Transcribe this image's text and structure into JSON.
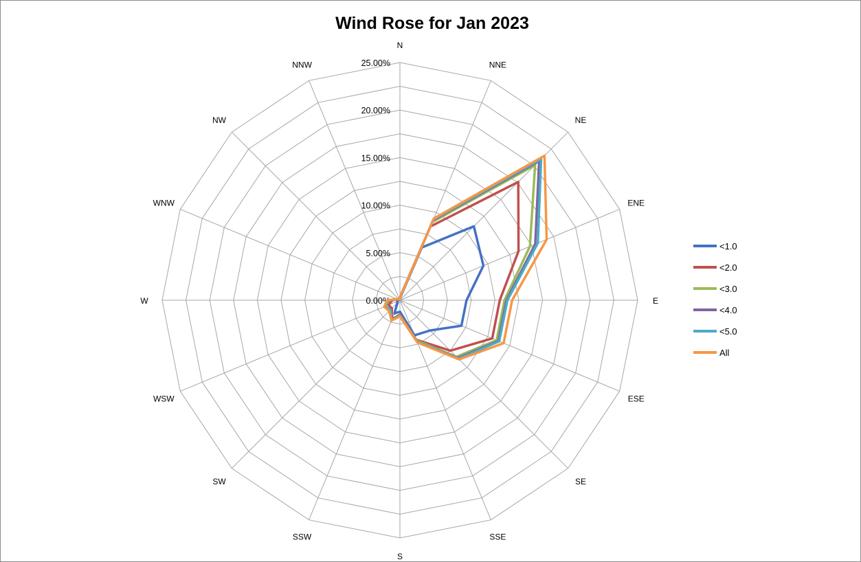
{
  "chart_data": {
    "type": "radar",
    "title": "Wind Rose for Jan 2023",
    "directions": [
      "N",
      "NNE",
      "NE",
      "ENE",
      "E",
      "ESE",
      "SE",
      "SSE",
      "S",
      "SSW",
      "SW",
      "WSW",
      "W",
      "WNW",
      "NW",
      "NNW"
    ],
    "radial_ticks": [
      "0.00%",
      "5.00%",
      "10.00%",
      "15.00%",
      "20.00%",
      "25.00%"
    ],
    "rmax": 25,
    "series": [
      {
        "name": "<1.0",
        "color": "#4472C4",
        "values": [
          0.2,
          6.0,
          11.0,
          9.5,
          7.0,
          7.0,
          4.5,
          4.0,
          1.2,
          1.5,
          0.4,
          0.3,
          0.3,
          0.2,
          0.1,
          0.1
        ]
      },
      {
        "name": "<2.0",
        "color": "#C0504D",
        "values": [
          0.3,
          8.4,
          17.6,
          13.5,
          10.5,
          10.5,
          7.5,
          4.5,
          1.5,
          2.2,
          1.2,
          1.3,
          0.8,
          0.3,
          0.2,
          0.1
        ]
      },
      {
        "name": "<3.0",
        "color": "#9BBB59",
        "values": [
          0.3,
          8.9,
          20.1,
          14.8,
          11.0,
          11.0,
          8.4,
          4.6,
          1.6,
          2.3,
          1.4,
          1.7,
          1.1,
          0.3,
          0.2,
          0.1
        ]
      },
      {
        "name": "<4.0",
        "color": "#8064A2",
        "values": [
          0.3,
          9.1,
          20.7,
          15.4,
          11.2,
          11.2,
          8.6,
          4.7,
          1.6,
          2.3,
          1.4,
          1.7,
          1.2,
          0.3,
          0.2,
          0.1
        ]
      },
      {
        "name": "<5.0",
        "color": "#4BACC6",
        "values": [
          0.3,
          9.2,
          21.0,
          15.7,
          11.3,
          11.3,
          8.7,
          4.7,
          1.6,
          2.3,
          1.4,
          1.7,
          1.2,
          0.3,
          0.2,
          0.1
        ]
      },
      {
        "name": "All",
        "color": "#F79646",
        "values": [
          0.3,
          9.3,
          21.5,
          16.7,
          11.8,
          11.8,
          8.8,
          4.8,
          1.7,
          2.3,
          1.6,
          1.8,
          1.3,
          0.3,
          0.2,
          0.1
        ]
      }
    ],
    "grid": true,
    "legend_position": "right"
  }
}
